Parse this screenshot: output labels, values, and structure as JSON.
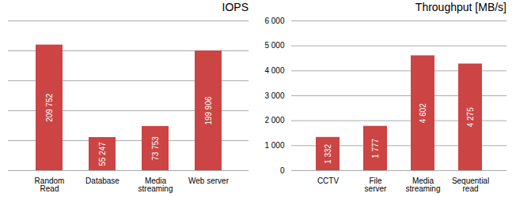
{
  "chart_data": [
    {
      "type": "bar",
      "title": "IOPS",
      "categories": [
        "Random\nRead",
        "Database",
        "Media\nstreaming",
        "Web server"
      ],
      "values": [
        209752,
        55247,
        73753,
        199906
      ],
      "value_labels": [
        "209 752",
        "55 247",
        "73 753",
        "199 906"
      ],
      "data_labels": true,
      "color": "#cc4444",
      "ylim": [
        0,
        250000
      ],
      "yticks": [
        0,
        50000,
        100000,
        150000,
        200000,
        250000
      ],
      "grid": true,
      "tick_labels": "x"
    },
    {
      "type": "bar",
      "title": "Throughput  [MB/s]",
      "categories": [
        "CCTV",
        "File\nserver",
        "Media\nstreaming",
        "Sequential\nread"
      ],
      "values": [
        1332,
        1777,
        4602,
        4275
      ],
      "value_labels": [
        "1 332",
        "1 777",
        "4 602",
        "4 275"
      ],
      "data_labels": true,
      "color": "#cc4444",
      "ylim": [
        0,
        6000
      ],
      "yticks": [
        0,
        {
          "value": 1000,
          "label": "1 000"
        },
        {
          "value": 2000,
          "label": "2 000"
        },
        {
          "value": 3000,
          "label": "3 000"
        },
        {
          "value": 4000,
          "label": "4 000"
        },
        {
          "value": 5000,
          "label": "5 000"
        },
        {
          "value": 6000,
          "label": "6 000"
        }
      ],
      "grid": true
    }
  ]
}
